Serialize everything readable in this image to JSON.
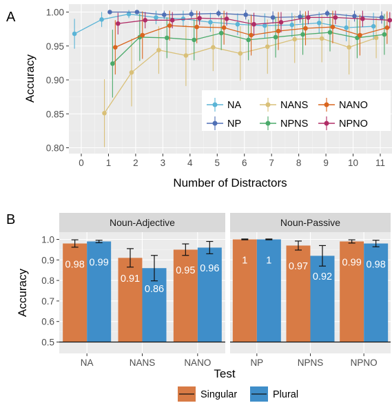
{
  "chart_data": [
    {
      "panel": "A",
      "type": "line",
      "xlabel": "Number of Distractors",
      "ylabel": "Accuracy",
      "xlim": [
        -0.5,
        11.5
      ],
      "ylim": [
        0.79,
        1.012
      ],
      "x_ticks": [
        "0",
        "1",
        "2",
        "3",
        "4",
        "5",
        "6",
        "7",
        "8",
        "9",
        "10",
        "11"
      ],
      "y_ticks": [
        "0.80",
        "0.85",
        "0.90",
        "0.95",
        "1.00"
      ],
      "grid": true,
      "legend_position": "bottom-right inside",
      "series": [
        {
          "name": "NA",
          "color": "#5ab4d6",
          "dodge": -0.25,
          "x": [
            0,
            1,
            2,
            3,
            4,
            5,
            6,
            7,
            8,
            9,
            10,
            11
          ],
          "y": [
            0.968,
            0.989,
            0.997,
            0.992,
            0.99,
            0.985,
            0.982,
            0.98,
            0.981,
            0.984,
            0.977,
            0.979
          ],
          "err": [
            0.022,
            0.011,
            0.006,
            0.01,
            0.012,
            0.014,
            0.016,
            0.018,
            0.018,
            0.016,
            0.02,
            0.02
          ]
        },
        {
          "name": "NP",
          "color": "#4f6fb5",
          "dodge": 0.05,
          "x": [
            1,
            2,
            3,
            4,
            5,
            6,
            7,
            8,
            9,
            10,
            11
          ],
          "y": [
            1.0,
            1.0,
            0.996,
            0.997,
            0.998,
            0.996,
            0.992,
            0.993,
            0.998,
            0.994,
            0.992
          ],
          "err": [
            0.002,
            0.002,
            0.006,
            0.006,
            0.005,
            0.007,
            0.009,
            0.009,
            0.005,
            0.008,
            0.009
          ]
        },
        {
          "name": "NANS",
          "color": "#d9c078",
          "dodge": -0.15,
          "x": [
            1,
            2,
            3,
            4,
            5,
            6,
            7,
            8,
            9,
            10,
            11
          ],
          "y": [
            0.851,
            0.911,
            0.944,
            0.936,
            0.948,
            0.939,
            0.949,
            0.96,
            0.961,
            0.948,
            0.962
          ],
          "err": [
            0.05,
            0.05,
            0.035,
            0.045,
            0.035,
            0.04,
            0.04,
            0.035,
            0.035,
            0.04,
            0.03
          ]
        },
        {
          "name": "NPNS",
          "color": "#4aaa6a",
          "dodge": 0.15,
          "x": [
            1,
            2,
            3,
            4,
            5,
            6,
            7,
            8,
            9,
            10,
            11
          ],
          "y": [
            0.924,
            0.963,
            0.962,
            0.959,
            0.969,
            0.959,
            0.963,
            0.967,
            0.97,
            0.962,
            0.967
          ],
          "err": [
            0.05,
            0.035,
            0.03,
            0.03,
            0.025,
            0.03,
            0.03,
            0.03,
            0.028,
            0.03,
            0.03
          ]
        },
        {
          "name": "NANO",
          "color": "#d9651f",
          "dodge": 0.25,
          "x": [
            1,
            2,
            3,
            4,
            5,
            6,
            7,
            8,
            9,
            10,
            11
          ],
          "y": [
            0.948,
            0.966,
            0.98,
            0.978,
            0.977,
            0.966,
            0.972,
            0.976,
            0.978,
            0.966,
            0.977
          ],
          "err": [
            0.04,
            0.035,
            0.022,
            0.024,
            0.025,
            0.03,
            0.028,
            0.025,
            0.024,
            0.03,
            0.024
          ]
        },
        {
          "name": "NPNO",
          "color": "#b02d66",
          "dodge": 0.35,
          "x": [
            1,
            2,
            3,
            4,
            5,
            6,
            7,
            8,
            9,
            10,
            11
          ],
          "y": [
            0.983,
            0.988,
            0.988,
            0.991,
            0.99,
            0.982,
            0.985,
            0.992,
            0.992,
            0.99,
            0.988
          ],
          "err": [
            0.016,
            0.012,
            0.012,
            0.01,
            0.01,
            0.017,
            0.015,
            0.01,
            0.01,
            0.012,
            0.012
          ]
        }
      ]
    },
    {
      "panel": "B",
      "type": "bar",
      "xlabel": "Test",
      "ylabel": "Accuracy",
      "ylim": [
        0.475,
        1.03
      ],
      "baseline": 0.5,
      "y_ticks": [
        "0.5",
        "0.6",
        "0.7",
        "0.8",
        "0.9",
        "1.0"
      ],
      "grid": true,
      "legend_position": "bottom",
      "facets": [
        {
          "name": "Noun-Adjective",
          "categories": [
            "NA",
            "NANS",
            "NANO"
          ]
        },
        {
          "name": "Noun-Passive",
          "categories": [
            "NP",
            "NPNS",
            "NPNO"
          ]
        }
      ],
      "series": [
        {
          "name": "Singular",
          "color": "#d87b45",
          "values": [
            0.98,
            0.91,
            0.95,
            1.0,
            0.97,
            0.99
          ],
          "labels": [
            "0.98",
            "0.91",
            "0.95",
            "1",
            "0.97",
            "0.99"
          ],
          "err": [
            0.018,
            0.045,
            0.028,
            0.002,
            0.022,
            0.008
          ]
        },
        {
          "name": "Plural",
          "color": "#3f8ec9",
          "values": [
            0.99,
            0.86,
            0.96,
            1.0,
            0.92,
            0.98
          ],
          "labels": [
            "0.99",
            "0.86",
            "0.96",
            "1",
            "0.92",
            "0.98"
          ],
          "err": [
            0.006,
            0.062,
            0.03,
            0.002,
            0.05,
            0.016
          ]
        }
      ]
    }
  ]
}
